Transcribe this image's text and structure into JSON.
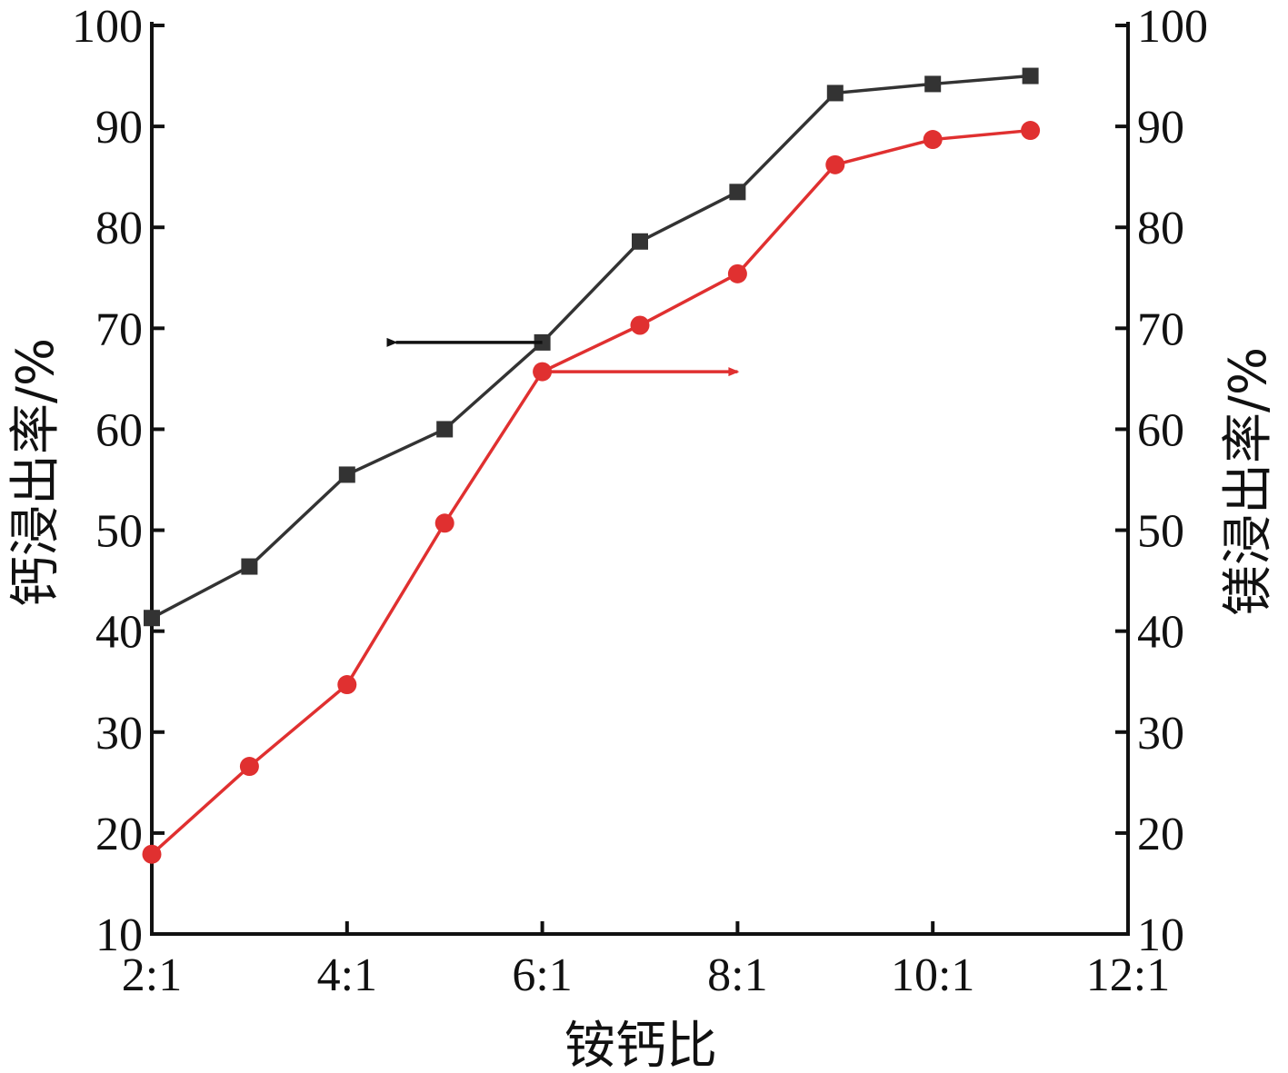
{
  "chart_data": {
    "type": "line",
    "xlabel": "铵钙比",
    "ylabel_left": "钙浸出率/%",
    "ylabel_right": "镁浸出率/%",
    "x_ticks": [
      "2:1",
      "4:1",
      "6:1",
      "8:1",
      "10:1",
      "12:1"
    ],
    "x_tick_values": [
      2,
      4,
      6,
      8,
      10,
      12
    ],
    "xlim": [
      2,
      12
    ],
    "ylim_left": [
      10,
      100
    ],
    "ylim_right": [
      10,
      100
    ],
    "y_ticks": [
      "10",
      "20",
      "30",
      "40",
      "50",
      "60",
      "70",
      "80",
      "90",
      "100"
    ],
    "y_tick_values": [
      10,
      20,
      30,
      40,
      50,
      60,
      70,
      80,
      90,
      100
    ],
    "grid": false,
    "series": [
      {
        "axis": "left",
        "marker": "square",
        "color": "#333333",
        "x": [
          2,
          3,
          4,
          5,
          6,
          7,
          8,
          9,
          10,
          11
        ],
        "y": [
          41.3,
          46.4,
          55.5,
          60.0,
          68.6,
          78.6,
          83.5,
          93.3,
          94.2,
          95.0
        ]
      },
      {
        "axis": "right",
        "marker": "circle",
        "color": "#e03030",
        "x": [
          2,
          3,
          4,
          5,
          6,
          7,
          8,
          9,
          10,
          11
        ],
        "y": [
          17.9,
          26.6,
          34.7,
          50.7,
          65.7,
          70.3,
          75.4,
          86.2,
          88.7,
          89.6
        ]
      }
    ],
    "annotations": [
      {
        "type": "arrow",
        "direction": "left",
        "from_x": 6,
        "to_x": 4.5,
        "y": 68.6,
        "color": "#111111"
      },
      {
        "type": "arrow",
        "direction": "right",
        "from_x": 6,
        "to_x": 8,
        "y": 65.7,
        "color": "#e03030"
      }
    ]
  }
}
